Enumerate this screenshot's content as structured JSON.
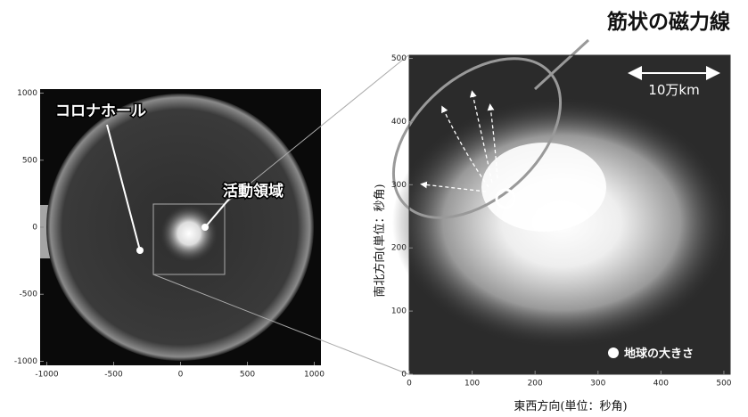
{
  "annotations": {
    "title": "筋状の磁力線",
    "scale": "10万km",
    "coronal_hole": "コロナホール",
    "active_region": "活動領域",
    "earth_size": "地球の大きさ"
  },
  "left_panel": {
    "xlim": [
      -1050,
      1050
    ],
    "ylim": [
      -1030,
      1030
    ],
    "xticks": [
      -1000,
      -500,
      0,
      500,
      1000
    ],
    "yticks": [
      1000,
      500,
      0,
      -500,
      -1000
    ]
  },
  "right_panel": {
    "xlim": [
      0,
      510
    ],
    "ylim": [
      0,
      505
    ],
    "xticks": [
      0,
      100,
      200,
      300,
      400,
      500
    ],
    "yticks": [
      0,
      100,
      200,
      300,
      400,
      500
    ],
    "xlabel": "東西方向(単位：秒角)",
    "ylabel": "南北方向(単位：秒角)"
  }
}
